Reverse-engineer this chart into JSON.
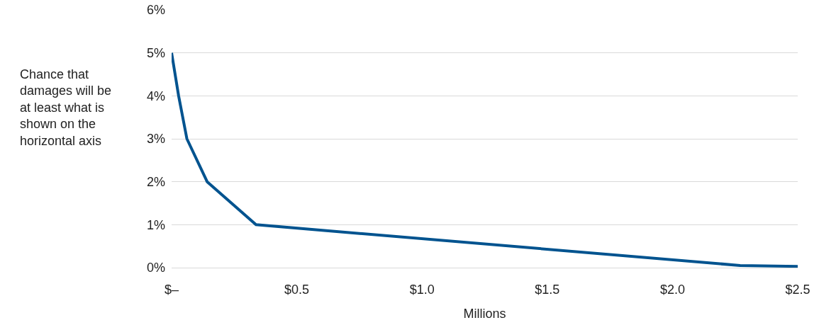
{
  "chart_data": {
    "type": "line",
    "xlabel": "Millions",
    "ylabel": "Chance that\ndamages will be\nat least what is\nshown on the\nhorizontal axis",
    "x": [
      0,
      0.028,
      0.061,
      0.142,
      0.337,
      2.27,
      2.5
    ],
    "series": [
      {
        "color": "#00538f",
        "values": [
          5,
          4,
          3,
          2,
          1,
          0.05,
          0.03
        ]
      }
    ],
    "xlim": [
      0,
      2.5
    ],
    "xticks": [
      {
        "value": 0,
        "label": "$–"
      },
      {
        "value": 0.5,
        "label": "$0.5"
      },
      {
        "value": 1,
        "label": "$1.0"
      },
      {
        "value": 1.5,
        "label": "$1.5"
      },
      {
        "value": 2,
        "label": "$2.0"
      },
      {
        "value": 2.5,
        "label": "$2.5"
      }
    ],
    "ylim": [
      0,
      6
    ],
    "yticks": [
      {
        "value": 0,
        "label": "0%"
      },
      {
        "value": 1,
        "label": "1%"
      },
      {
        "value": 2,
        "label": "2%"
      },
      {
        "value": 3,
        "label": "3%"
      },
      {
        "value": 4,
        "label": "4%"
      },
      {
        "value": 5,
        "label": "5%"
      },
      {
        "value": 6,
        "label": "6%"
      }
    ],
    "grid": "y",
    "marker": "none",
    "line_style": "solid"
  }
}
